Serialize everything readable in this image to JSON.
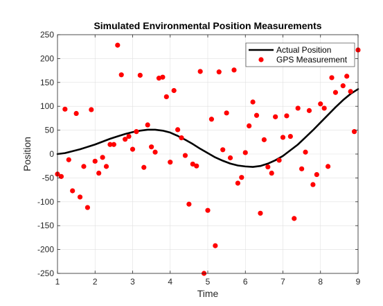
{
  "chart_data": {
    "type": "scatter",
    "title": "Simulated Environmental Position Measurements",
    "xlabel": "Time",
    "ylabel": "Position",
    "xlim": [
      1,
      9
    ],
    "ylim": [
      -250,
      250
    ],
    "xticks": [
      1,
      2,
      3,
      4,
      5,
      6,
      7,
      8,
      9
    ],
    "yticks": [
      -250,
      -200,
      -150,
      -100,
      -50,
      0,
      50,
      100,
      150,
      200,
      250
    ],
    "grid": true,
    "legend_position": "top-right",
    "series": [
      {
        "name": "Actual Position",
        "kind": "line",
        "color": "#000000",
        "x": [
          1.0,
          1.2,
          1.4,
          1.6,
          1.8,
          2.0,
          2.2,
          2.4,
          2.6,
          2.8,
          3.0,
          3.2,
          3.4,
          3.6,
          3.8,
          4.0,
          4.2,
          4.4,
          4.6,
          4.8,
          5.0,
          5.2,
          5.4,
          5.6,
          5.8,
          6.0,
          6.2,
          6.4,
          6.6,
          6.8,
          7.0,
          7.2,
          7.4,
          7.6,
          7.8,
          8.0,
          8.2,
          8.4,
          8.6,
          8.8,
          9.0
        ],
        "y": [
          0,
          2,
          6,
          10,
          15,
          20,
          26,
          32,
          37,
          42,
          46,
          49,
          51,
          51,
          49,
          45,
          38,
          30,
          21,
          11,
          2,
          -7,
          -14,
          -20,
          -24,
          -26,
          -27,
          -25,
          -20,
          -13,
          -4,
          8,
          20,
          35,
          50,
          66,
          82,
          98,
          113,
          126,
          136
        ]
      },
      {
        "name": "GPS Measurement",
        "kind": "scatter",
        "color": "#ff0000",
        "x": [
          1.0,
          1.1,
          1.2,
          1.3,
          1.4,
          1.5,
          1.6,
          1.7,
          1.8,
          1.9,
          2.0,
          2.1,
          2.2,
          2.3,
          2.4,
          2.5,
          2.6,
          2.7,
          2.8,
          2.9,
          3.0,
          3.1,
          3.2,
          3.3,
          3.4,
          3.5,
          3.6,
          3.7,
          3.8,
          3.9,
          4.0,
          4.1,
          4.2,
          4.3,
          4.4,
          4.5,
          4.6,
          4.7,
          4.8,
          4.9,
          5.0,
          5.1,
          5.2,
          5.3,
          5.4,
          5.5,
          5.6,
          5.7,
          5.8,
          5.9,
          6.0,
          6.1,
          6.2,
          6.3,
          6.4,
          6.5,
          6.6,
          6.7,
          6.8,
          6.9,
          7.0,
          7.1,
          7.2,
          7.3,
          7.4,
          7.5,
          7.6,
          7.7,
          7.8,
          7.9,
          8.0,
          8.1,
          8.2,
          8.3,
          8.4,
          8.5,
          8.6,
          8.7,
          8.8,
          8.9,
          9.0
        ],
        "y": [
          -42,
          -47,
          94,
          -12,
          -77,
          85,
          -90,
          -26,
          -112,
          93,
          -15,
          -40,
          -7,
          -26,
          20,
          20,
          228,
          166,
          31,
          37,
          10,
          47,
          165,
          -28,
          61,
          15,
          4,
          159,
          161,
          120,
          -17,
          133,
          51,
          34,
          -3,
          -105,
          -21,
          -25,
          173,
          -250,
          -118,
          73,
          -192,
          172,
          9,
          86,
          -8,
          176,
          -61,
          -49,
          3,
          59,
          109,
          81,
          -124,
          30,
          -27,
          -40,
          78,
          -13,
          35,
          80,
          37,
          -135,
          96,
          -31,
          4,
          91,
          -64,
          -43,
          105,
          96,
          -26,
          160,
          129,
          192,
          143,
          163,
          131,
          47,
          218
        ]
      }
    ]
  }
}
